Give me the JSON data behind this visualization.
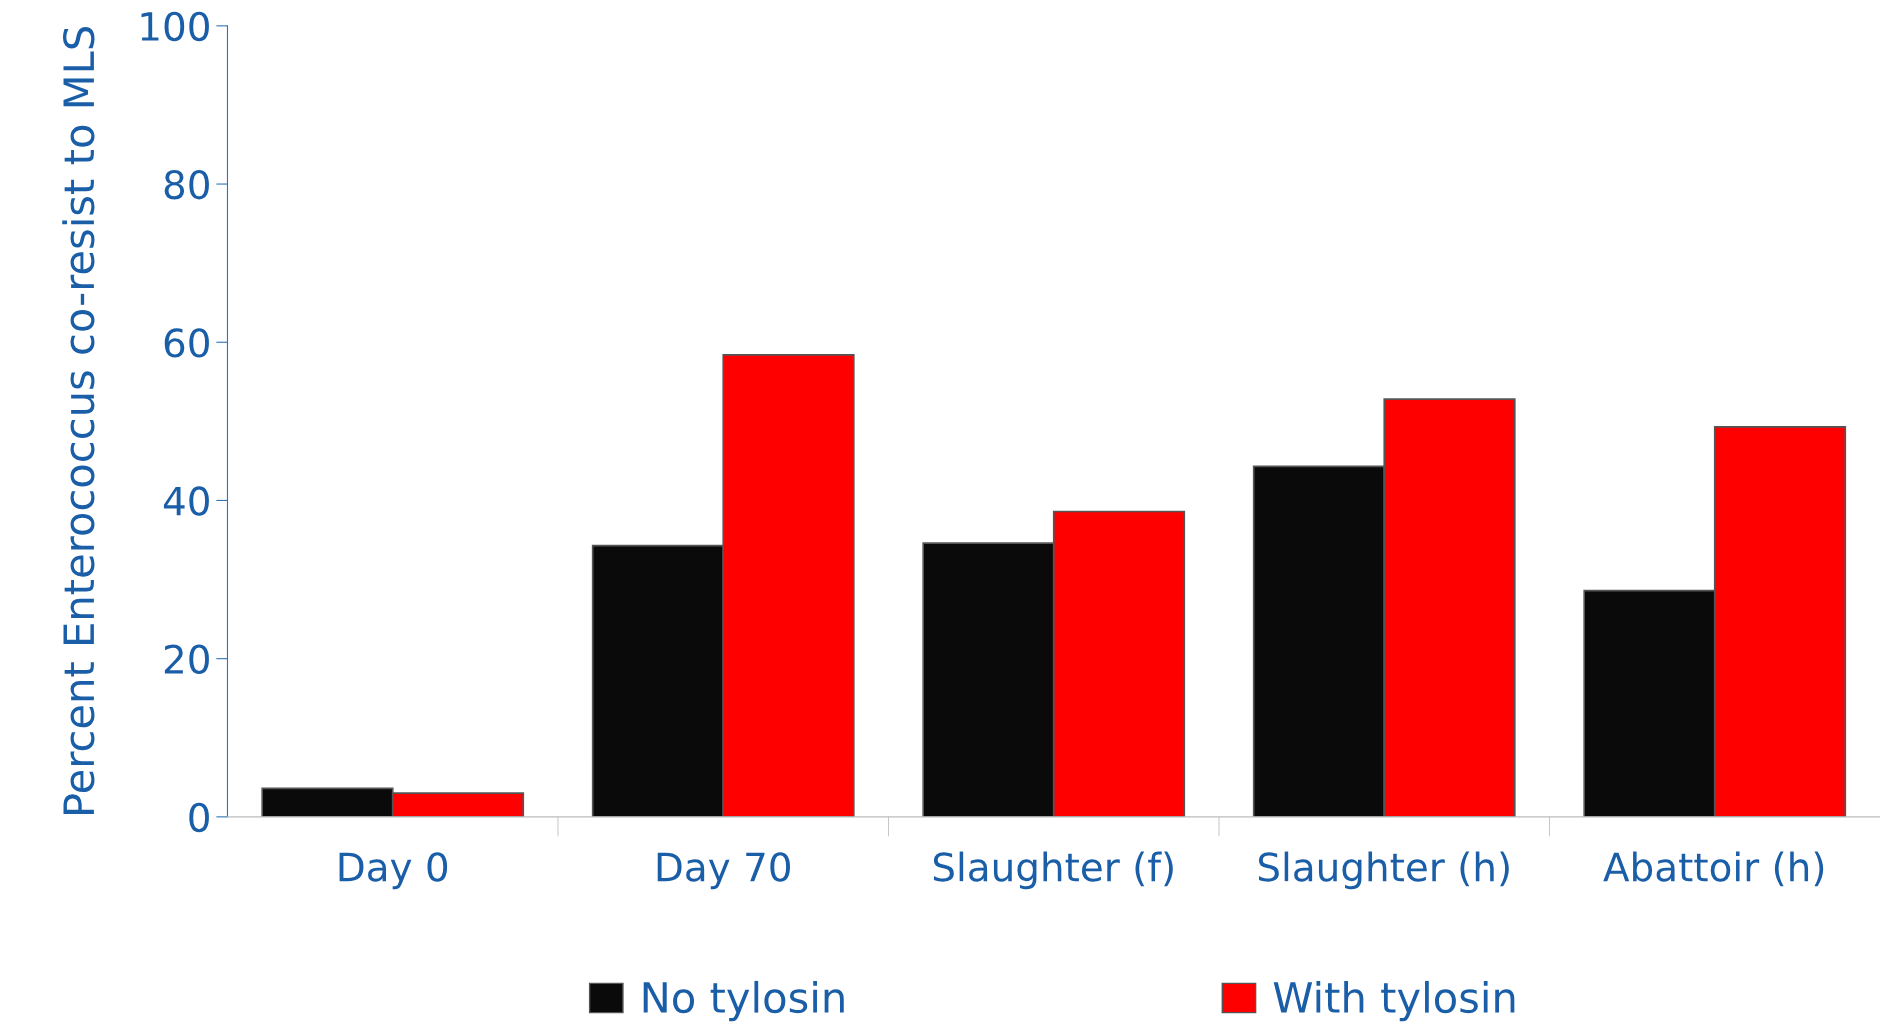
{
  "chart_data": {
    "type": "bar",
    "ylabel": "Percent Enterococcus co-resist to MLS",
    "categories": [
      "Day 0",
      "Day 70",
      "Slaughter (f)",
      "Slaughter (h)",
      "Abattoir (h)"
    ],
    "series": [
      {
        "name": "No tylosin",
        "color": "#0a0a0a",
        "values": [
          3.6,
          34.3,
          34.6,
          44.3,
          28.6
        ]
      },
      {
        "name": "With tylosin",
        "color": "#ff0000",
        "values": [
          3.0,
          58.4,
          38.6,
          52.8,
          49.3
        ]
      }
    ],
    "ylim": [
      0,
      100
    ],
    "yticks": [
      0,
      20,
      40,
      60,
      80,
      100
    ],
    "grid": false,
    "legend": "bottom"
  }
}
